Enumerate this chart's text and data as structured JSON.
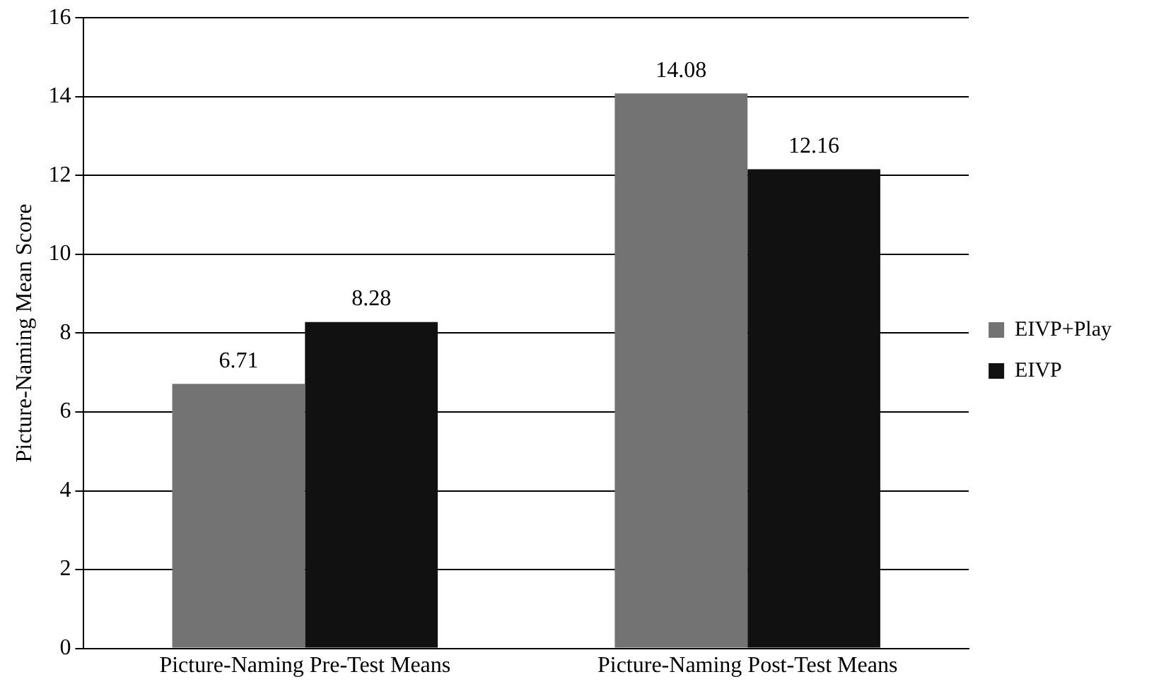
{
  "chart_data": {
    "type": "bar",
    "ylabel": "Picture-Naming Mean Score",
    "categories": [
      "Picture-Naming Pre-Test Means",
      "Picture-Naming Post-Test Means"
    ],
    "series": [
      {
        "name": "EIVP+Play",
        "color": "#737373",
        "values": [
          6.71,
          14.08
        ]
      },
      {
        "name": "EIVP",
        "color": "#111111",
        "values": [
          8.28,
          12.16
        ]
      }
    ],
    "ylim": [
      0,
      16
    ],
    "yticks": [
      0,
      2,
      4,
      6,
      8,
      10,
      12,
      14,
      16
    ],
    "grid": "y",
    "legend": "right",
    "data_labels": true
  }
}
